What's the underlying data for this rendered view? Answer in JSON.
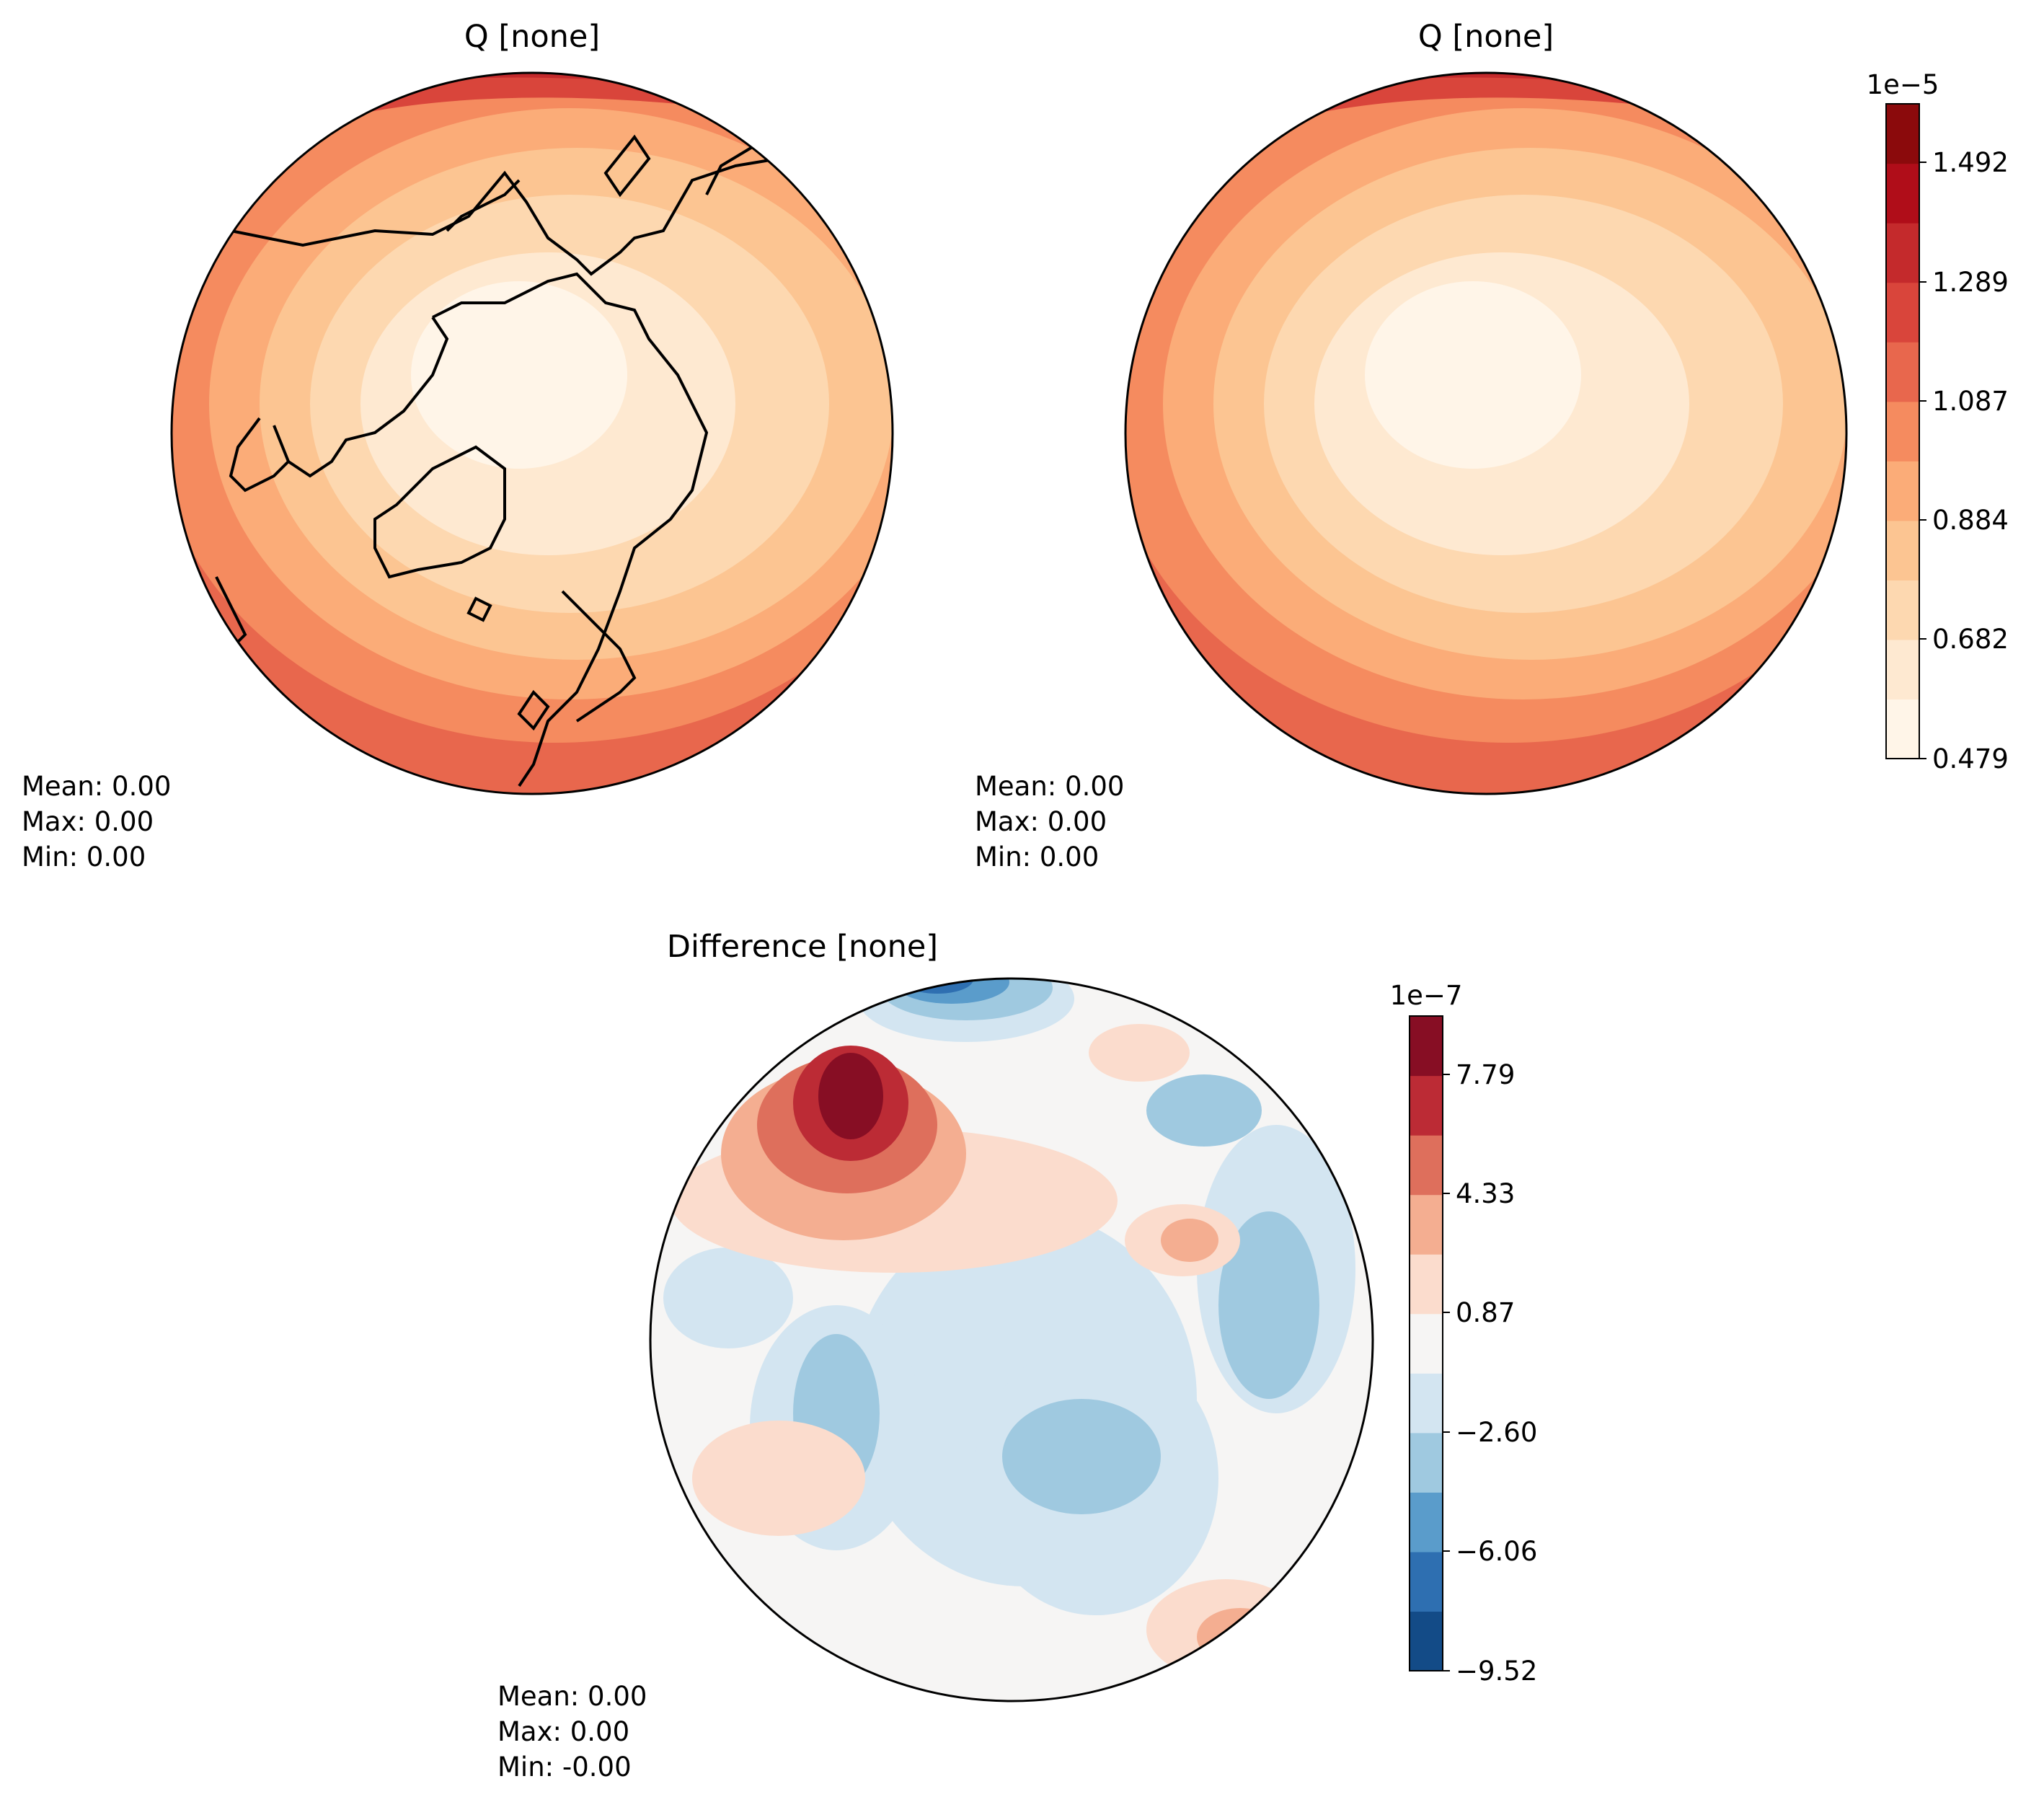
{
  "panels": [
    {
      "id": "test",
      "title": "Q [none]",
      "stats": {
        "mean": "Mean:  0.00",
        "max": "Max:  0.00",
        "min": "Min:  0.00"
      }
    },
    {
      "id": "ref",
      "title": "Q [none]",
      "stats": {
        "mean": "Mean:  0.00",
        "max": "Max:  0.00",
        "min": "Min:  0.00"
      }
    },
    {
      "id": "diff",
      "title": "Difference [none]",
      "stats": {
        "mean": "Mean:  0.00",
        "max": "Max:  0.00",
        "min": "Min: -0.00"
      }
    }
  ],
  "colorbars": {
    "main": {
      "exponent": "1e−5",
      "tick_labels": [
        "1.492",
        "1.289",
        "1.087",
        "0.884",
        "0.682",
        "0.479"
      ],
      "range": [
        0.479,
        1.593
      ],
      "levels": 11,
      "colors": [
        "#fff5e8",
        "#fee9d1",
        "#fdd8b0",
        "#fcc592",
        "#fbac78",
        "#f58b5f",
        "#e8674d",
        "#d9453b",
        "#c42a2c",
        "#b00d19",
        "#8b0a0c"
      ]
    },
    "diff": {
      "exponent": "1e−7",
      "tick_labels": [
        "7.79",
        "4.33",
        "0.87",
        "−2.60",
        "−6.06",
        "−9.52"
      ],
      "range": [
        -9.52,
        9.52
      ],
      "levels": 11,
      "colors": [
        "#134b87",
        "#2e6fb1",
        "#5a9ccb",
        "#9fc9e0",
        "#d3e5f1",
        "#f6f5f4",
        "#fbdccd",
        "#f4ae91",
        "#de6f5c",
        "#bc2b35",
        "#870e24"
      ]
    }
  },
  "map": {
    "projection": "north-polar-stereographic",
    "coastline_color": "#000000"
  }
}
